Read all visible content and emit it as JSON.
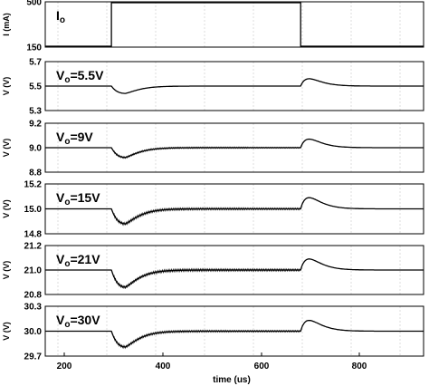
{
  "chart_data": {
    "type": "line",
    "xlabel": "time (us)",
    "xlim": [
      160,
      960
    ],
    "xticks": [
      "200",
      "400",
      "600",
      "800"
    ],
    "step_on": 300,
    "step_off": 700,
    "panels": [
      {
        "id": "io",
        "kind": "step",
        "label_main": "I",
        "label_sub": "o",
        "label_tail": "",
        "ylabel": "I (mA)",
        "yticks": [
          "500",
          "150"
        ],
        "ylim": [
          150,
          500
        ],
        "low": 150,
        "high": 500
      },
      {
        "id": "vo55",
        "kind": "voltage",
        "label_main": "V",
        "label_sub": "o",
        "label_tail": "=5.5V",
        "ylabel": "V (V)",
        "yticks": [
          "5.7",
          "5.5",
          "5.3"
        ],
        "ylim": [
          5.3,
          5.7
        ],
        "nominal": 5.5,
        "undershoot": 5.44,
        "overshoot": 5.56,
        "ripple": 0
      },
      {
        "id": "vo9",
        "kind": "voltage",
        "label_main": "V",
        "label_sub": "o",
        "label_tail": "=9V",
        "ylabel": "V (V)",
        "yticks": [
          "9.2",
          "9.0",
          "8.8"
        ],
        "ylim": [
          8.8,
          9.2
        ],
        "nominal": 9.0,
        "undershoot": 8.92,
        "overshoot": 9.07,
        "ripple": 0.008
      },
      {
        "id": "vo15",
        "kind": "voltage",
        "label_main": "V",
        "label_sub": "o",
        "label_tail": "=15V",
        "ylabel": "V (V)",
        "yticks": [
          "15.2",
          "15.0",
          "14.8"
        ],
        "ylim": [
          14.8,
          15.2
        ],
        "nominal": 15.0,
        "undershoot": 14.88,
        "overshoot": 15.09,
        "ripple": 0.012
      },
      {
        "id": "vo21",
        "kind": "voltage",
        "label_main": "V",
        "label_sub": "o",
        "label_tail": "=21V",
        "ylabel": "V (V)",
        "yticks": [
          "21.2",
          "21.0",
          "20.8"
        ],
        "ylim": [
          20.8,
          21.2
        ],
        "nominal": 21.0,
        "undershoot": 20.86,
        "overshoot": 21.09,
        "ripple": 0.014
      },
      {
        "id": "vo30",
        "kind": "voltage",
        "label_main": "V",
        "label_sub": "o",
        "label_tail": "=30V",
        "ylabel": "V (V)",
        "yticks": [
          "30.3",
          "30.0",
          "29.7"
        ],
        "ylim": [
          29.7,
          30.3
        ],
        "nominal": 30.0,
        "undershoot": 29.81,
        "overshoot": 30.13,
        "ripple": 0.016
      }
    ]
  }
}
